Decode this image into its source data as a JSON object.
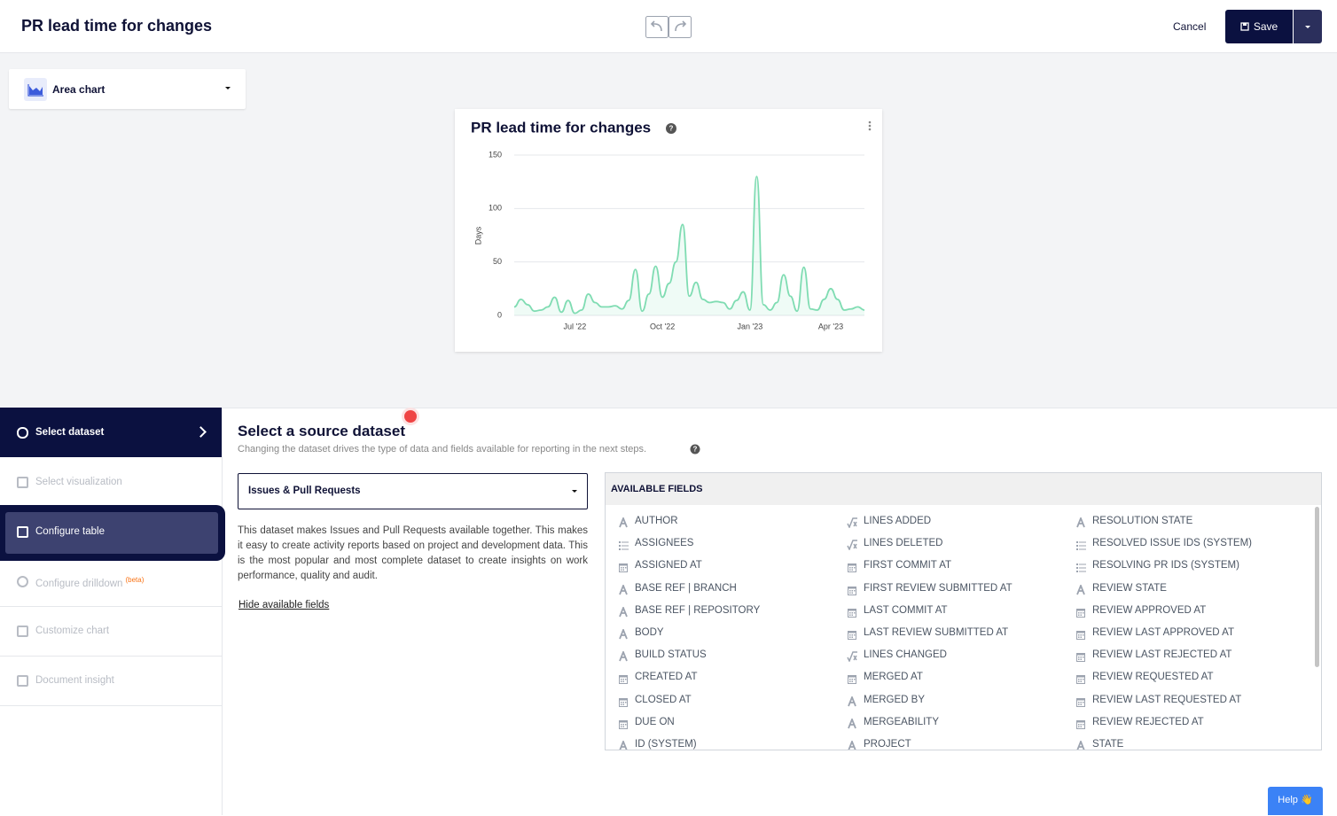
{
  "header": {
    "title": "PR lead time for changes",
    "cancel": "Cancel",
    "save": "Save"
  },
  "visualization_selector": {
    "label": "Area chart"
  },
  "sidebar": {
    "items": [
      "Select dataset",
      "Select visualization",
      "Configure table",
      "Configure drilldown",
      "Customize chart",
      "Document insight"
    ],
    "beta": "(beta)"
  },
  "dataset": {
    "title": "Select a source dataset",
    "description": "Changing the dataset drives the type of data and fields available for reporting in the next steps.",
    "selected": "Issues & Pull Requests",
    "paragraph": "This dataset makes Issues and Pull Requests available together. This makes it easy to create activity reports based on project and development data. This is the most popular and most complete dataset to create insights on work performance, quality and audit.",
    "toggle": "Hide available fields"
  },
  "fields": {
    "header": "AVAILABLE FIELDS",
    "columns": [
      [
        "AUTHOR",
        "ASSIGNEES",
        "ASSIGNED AT",
        "BASE REF | BRANCH",
        "BASE REF | REPOSITORY",
        "BODY",
        "BUILD STATUS",
        "CREATED AT",
        "CLOSED AT",
        "DUE ON",
        "ID (SYSTEM)"
      ],
      [
        "LINES ADDED",
        "LINES DELETED",
        "FIRST COMMIT AT",
        "FIRST REVIEW SUBMITTED AT",
        "LAST COMMIT AT",
        "LAST REVIEW SUBMITTED AT",
        "LINES CHANGED",
        "MERGED AT",
        "MERGED BY",
        "MERGEABILITY",
        "PROJECT"
      ],
      [
        "RESOLUTION STATE",
        "RESOLVED ISSUE IDS (SYSTEM)",
        "RESOLVING PR IDS (SYSTEM)",
        "REVIEW STATE",
        "REVIEW APPROVED AT",
        "REVIEW LAST APPROVED AT",
        "REVIEW LAST REJECTED AT",
        "REVIEW REQUESTED AT",
        "REVIEW LAST REQUESTED AT",
        "REVIEW REJECTED AT",
        "STATE"
      ]
    ]
  },
  "help": "Help 👋",
  "chart_data": {
    "type": "area",
    "title": "PR lead time for changes",
    "y_label": "Days",
    "categories": [
      null,
      null,
      null,
      null,
      null,
      null,
      null,
      null,
      null,
      "Jul '22",
      null,
      null,
      null,
      null,
      null,
      null,
      null,
      null,
      null,
      null,
      null,
      null,
      "Oct '22",
      null,
      null,
      null,
      null,
      null,
      null,
      null,
      null,
      null,
      null,
      null,
      null,
      "Jan '23",
      null,
      null,
      null,
      null,
      null,
      null,
      null,
      null,
      null,
      null,
      null,
      "Apr '23",
      null,
      null,
      null,
      null,
      null
    ],
    "series": [
      {
        "name": "Days",
        "color": "#7fdcb2",
        "values": [
          8,
          15,
          10,
          4,
          5,
          8,
          17,
          3,
          14,
          2,
          5,
          20,
          12,
          8,
          8,
          9,
          6,
          14,
          43,
          4,
          20,
          46,
          17,
          30,
          50,
          85,
          18,
          31,
          15,
          12,
          13,
          12,
          6,
          14,
          22,
          5,
          130,
          10,
          5,
          12,
          38,
          18,
          4,
          45,
          6,
          5,
          15,
          25,
          15,
          5,
          6,
          8,
          5
        ]
      }
    ],
    "ylim": [
      0,
      150
    ],
    "yticks": [
      0,
      50,
      100,
      150
    ],
    "grid": true
  }
}
